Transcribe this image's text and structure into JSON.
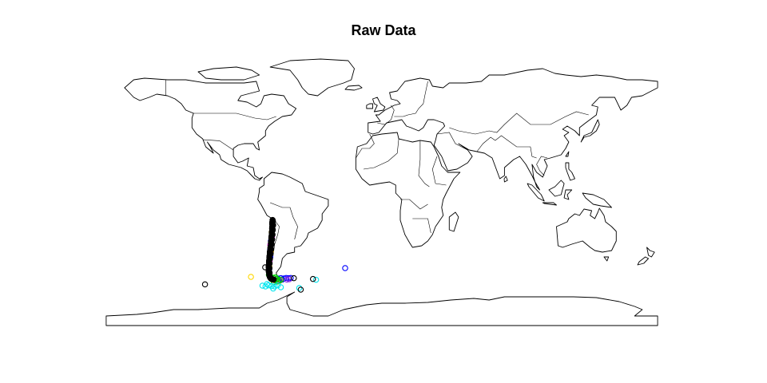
{
  "title": "Raw Data",
  "map": {
    "projection": "equirectangular",
    "lon_range": [
      -180,
      180
    ],
    "lat_range": [
      -90,
      90
    ],
    "outline_color": "#000000",
    "background": "#ffffff",
    "point_symbol": "open-circle"
  },
  "colors": {
    "black": "#000000",
    "red": "#ff0000",
    "green": "#00cd00",
    "blue": "#0000ff",
    "cyan": "#00e5ee",
    "magenta": "#ff00ff",
    "yellow": "#ffd700",
    "purple": "#8a2be2"
  },
  "observations": {
    "track": {
      "color": "black",
      "points": [
        [
          -71.4,
          -17.8
        ],
        [
          -71.5,
          -19
        ],
        [
          -71.6,
          -20.5
        ],
        [
          -71.6,
          -22
        ],
        [
          -71.7,
          -23.5
        ],
        [
          -71.8,
          -25
        ],
        [
          -71.9,
          -26.5
        ],
        [
          -72.1,
          -28
        ],
        [
          -72.2,
          -29.5
        ],
        [
          -72.3,
          -31
        ],
        [
          -72.5,
          -32.5
        ],
        [
          -72.6,
          -34
        ],
        [
          -72.8,
          -35.5
        ],
        [
          -73,
          -37
        ],
        [
          -73.2,
          -38.5
        ],
        [
          -73.3,
          -40
        ],
        [
          -73.5,
          -41.5
        ],
        [
          -73.6,
          -43
        ],
        [
          -73.7,
          -44.5
        ],
        [
          -73.8,
          -46
        ],
        [
          -73.9,
          -47.5
        ],
        [
          -73.9,
          -49
        ],
        [
          -73.8,
          -50.5
        ],
        [
          -73.6,
          -52
        ],
        [
          -73.2,
          -53.5
        ],
        [
          -72.5,
          -54.5
        ],
        [
          -71.5,
          -55
        ],
        [
          -70.5,
          -55.2
        ],
        [
          -71.2,
          -18.5
        ],
        [
          -71,
          -21
        ],
        [
          -71.2,
          -24
        ],
        [
          -71.4,
          -27
        ],
        [
          -71.7,
          -30
        ],
        [
          -72,
          -33
        ],
        [
          -72.4,
          -36
        ],
        [
          -72.8,
          -39
        ],
        [
          -73.1,
          -42
        ],
        [
          -73.3,
          -45
        ],
        [
          -73.4,
          -48
        ],
        [
          -73.3,
          -51
        ]
      ]
    },
    "scattered": [
      {
        "color": "blue",
        "points": [
          [
            -72.5,
            -31
          ],
          [
            -73,
            -36.5
          ],
          [
            -72.8,
            -41
          ],
          [
            -73.5,
            -48.5
          ],
          [
            -68,
            -54.5
          ],
          [
            -66,
            -54.3
          ],
          [
            -64,
            -54.5
          ],
          [
            -62.5,
            -54.2
          ],
          [
            -61,
            -54.3
          ],
          [
            -59.5,
            -54.2
          ],
          [
            -65,
            -55.2
          ],
          [
            -67.5,
            -55.5
          ],
          [
            -24,
            -48
          ]
        ]
      },
      {
        "color": "magenta",
        "points": [
          [
            -72.9,
            -33.5
          ],
          [
            -71.8,
            -28.3
          ],
          [
            -73.3,
            -43.7
          ],
          [
            -66.5,
            -55.8
          ]
        ]
      },
      {
        "color": "purple",
        "points": [
          [
            -72.2,
            -30.5
          ],
          [
            -62,
            -55.2
          ],
          [
            -60.5,
            -55
          ]
        ]
      },
      {
        "color": "yellow",
        "points": [
          [
            -72,
            -25.5
          ],
          [
            -72.6,
            -37.5
          ],
          [
            -73.5,
            -46.8
          ],
          [
            -85.5,
            -53.5
          ]
        ]
      },
      {
        "color": "red",
        "points": [
          [
            -73,
            -38
          ],
          [
            -70.5,
            -55.5
          ],
          [
            -69,
            -56
          ]
        ]
      },
      {
        "color": "green",
        "points": [
          [
            -73.8,
            -52.2
          ],
          [
            -72.5,
            -53.5
          ],
          [
            -71,
            -54
          ],
          [
            -69.5,
            -53.8
          ],
          [
            -68.5,
            -54.7
          ],
          [
            -70,
            -55.5
          ],
          [
            -67,
            -56
          ],
          [
            -66,
            -55.3
          ],
          [
            -71.5,
            -55.2
          ],
          [
            -69,
            -55
          ],
          [
            -68,
            -56.4
          ],
          [
            -72.4,
            -54.6
          ],
          [
            -70.6,
            -56.8
          ]
        ]
      },
      {
        "color": "cyan",
        "points": [
          [
            -78,
            -59
          ],
          [
            -76,
            -59.5
          ],
          [
            -74,
            -58.8
          ],
          [
            -72,
            -59.3
          ],
          [
            -70,
            -59.5
          ],
          [
            -68,
            -58.8
          ],
          [
            -75,
            -58
          ],
          [
            -66,
            -60
          ],
          [
            -54,
            -60.5
          ],
          [
            -43,
            -55.3
          ],
          [
            -71,
            -60.8
          ]
        ]
      },
      {
        "color": "black",
        "points": [
          [
            -115.5,
            -58.2
          ],
          [
            -76.2,
            -47.5
          ],
          [
            -57.5,
            -54.3
          ],
          [
            -45,
            -54.8
          ],
          [
            -53,
            -61.5
          ]
        ]
      }
    ]
  }
}
